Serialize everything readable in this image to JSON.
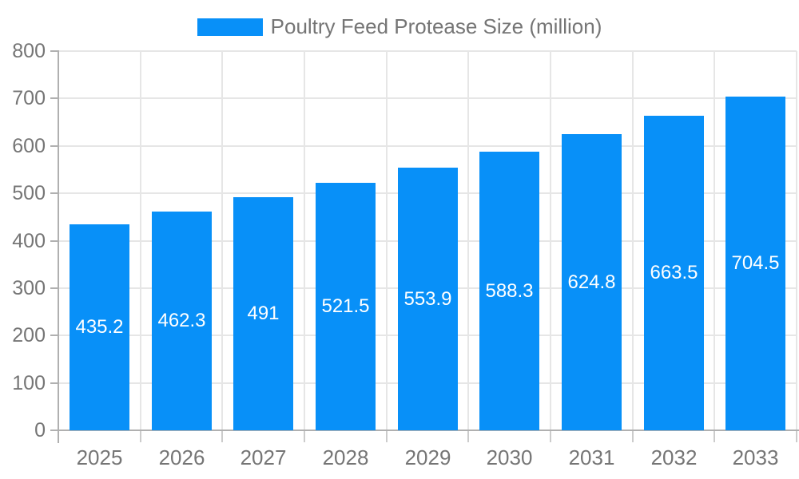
{
  "legend": {
    "label": "Poultry Feed Protease Size (million)"
  },
  "chart_data": {
    "type": "bar",
    "title": "Poultry Feed Protease Size (million)",
    "categories": [
      "2025",
      "2026",
      "2027",
      "2028",
      "2029",
      "2030",
      "2031",
      "2032",
      "2033"
    ],
    "values": [
      435.2,
      462.3,
      491,
      521.5,
      553.9,
      588.3,
      624.8,
      663.5,
      704.5
    ],
    "value_labels": [
      "435.2",
      "462.3",
      "491",
      "521.5",
      "553.9",
      "588.3",
      "624.8",
      "663.5",
      "704.5"
    ],
    "xlabel": "",
    "ylabel": "",
    "ylim": [
      0,
      800
    ],
    "ytick_interval": 100,
    "ytick_labels": [
      "0",
      "100",
      "200",
      "300",
      "400",
      "500",
      "600",
      "700",
      "800"
    ],
    "grid": true,
    "legend_position": "top-center",
    "bar_label_position": "inside-center"
  },
  "colors": {
    "bar": "#0890f8",
    "grid": "#e6e6e6",
    "axis": "#b0b0b0",
    "category_tick": "#cccccc",
    "text": "#757575",
    "bar_label": "#ffffff",
    "background": "#ffffff"
  }
}
